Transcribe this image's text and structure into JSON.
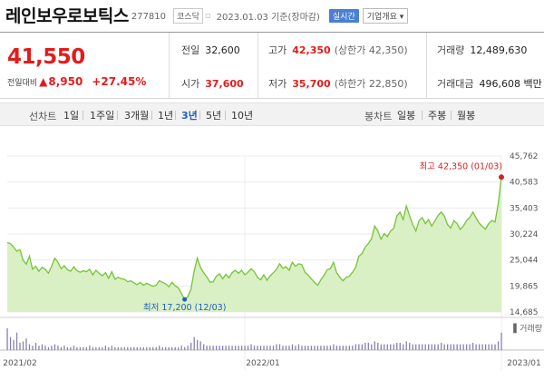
{
  "header": {
    "name": "레인보우로보틱스",
    "code": "277810",
    "market": "코스닥",
    "date_text": "2023.01.03  기준(장마감)",
    "realtime_label": "실시간",
    "company_label": "기업개요 ▾"
  },
  "price": {
    "current": "41,550",
    "change_label": "전일대비",
    "change": "8,950",
    "rate": "+27.45%"
  },
  "stats": {
    "prev_close": {
      "label": "전일",
      "value": "32,600"
    },
    "open": {
      "label": "시가",
      "value": "37,600"
    },
    "high": {
      "label": "고가",
      "value": "42,350",
      "extra": "(상한가 42,350)"
    },
    "low": {
      "label": "저가",
      "value": "35,700",
      "extra": "(하한가 22,850)"
    },
    "volume": {
      "label": "거래량",
      "value": "12,489,630"
    },
    "amount": {
      "label": "거래대금",
      "value": "496,608 백만"
    }
  },
  "toolbar": {
    "line_label": "선차트",
    "periods": [
      "1일",
      "1주일",
      "3개월",
      "1년",
      "3년",
      "5년",
      "10년"
    ],
    "active_period": "3년",
    "candle_label": "봉차트",
    "candles": [
      "일봉",
      "주봉",
      "월봉"
    ]
  },
  "colors": {
    "up": "#e41b1b",
    "accent": "#1f5fbf",
    "line": "#78c23a",
    "area": "#d9f0c4"
  },
  "chart_data": {
    "type": "area",
    "y_ticks": [
      "45,762",
      "40,583",
      "35,403",
      "30,224",
      "25,044",
      "19,865",
      "14,685"
    ],
    "ylim": [
      14685,
      45762
    ],
    "x_labels": [
      "2021/02",
      "2022/01",
      "2023/01"
    ],
    "high_label": "최고 42,350 (01/03)",
    "low_label": "최저 17,200 (12/03)",
    "volume_label": "▌거래량",
    "values": [
      28500,
      28300,
      27600,
      26800,
      27100,
      25000,
      24200,
      25800,
      23200,
      23800,
      22800,
      23600,
      23200,
      22400,
      23800,
      25400,
      24600,
      23300,
      23900,
      23100,
      22800,
      23700,
      22900,
      22600,
      22900,
      22700,
      23200,
      22100,
      23000,
      22400,
      21900,
      22500,
      21400,
      22700,
      21200,
      21600,
      21300,
      21200,
      20700,
      20900,
      20500,
      20100,
      20600,
      20000,
      20400,
      20100,
      19800,
      20000,
      20900,
      20600,
      20300,
      19700,
      20600,
      19900,
      19500,
      18400,
      17200,
      17700,
      19200,
      22800,
      25400,
      23600,
      22500,
      21700,
      20600,
      20700,
      21800,
      22300,
      21300,
      22200,
      21500,
      22500,
      23000,
      22400,
      23000,
      22100,
      22600,
      23300,
      22700,
      21600,
      21100,
      22100,
      21000,
      21900,
      22500,
      23200,
      24300,
      23400,
      23700,
      23000,
      24600,
      23800,
      24300,
      24100,
      22600,
      22000,
      21300,
      20600,
      20000,
      21100,
      22000,
      23100,
      23300,
      24600,
      22500,
      21600,
      20900,
      21600,
      21800,
      22600,
      23600,
      25800,
      26300,
      27600,
      28300,
      29300,
      31800,
      30800,
      29200,
      30300,
      29700,
      30800,
      31300,
      33800,
      34600,
      33100,
      35800,
      33900,
      32100,
      30800,
      32900,
      33500,
      32300,
      33100,
      31800,
      32800,
      33900,
      34600,
      33800,
      32100,
      31400,
      32900,
      32300,
      31100,
      31800,
      32900,
      33500,
      34600,
      33400,
      32400,
      31700,
      31200,
      32300,
      32900,
      32600,
      36200,
      41550
    ],
    "volume": [
      15,
      9,
      7,
      12,
      5,
      6,
      8,
      4,
      3,
      5,
      3,
      4,
      3,
      2,
      3,
      4,
      3,
      2,
      3,
      2,
      2,
      3,
      2,
      2,
      2,
      2,
      3,
      2,
      2,
      2,
      2,
      3,
      2,
      3,
      2,
      2,
      2,
      2,
      2,
      2,
      2,
      2,
      2,
      2,
      2,
      2,
      2,
      2,
      3,
      2,
      2,
      2,
      2,
      2,
      2,
      3,
      2,
      3,
      5,
      9,
      7,
      6,
      4,
      3,
      3,
      3,
      3,
      3,
      3,
      3,
      3,
      3,
      3,
      3,
      3,
      3,
      3,
      4,
      3,
      3,
      3,
      3,
      3,
      3,
      3,
      4,
      4,
      3,
      3,
      3,
      4,
      3,
      4,
      3,
      3,
      3,
      3,
      3,
      3,
      3,
      3,
      3,
      3,
      4,
      3,
      3,
      3,
      3,
      3,
      3,
      4,
      4,
      4,
      5,
      5,
      4,
      6,
      5,
      4,
      4,
      4,
      4,
      4,
      5,
      5,
      4,
      6,
      5,
      4,
      4,
      4,
      4,
      4,
      4,
      4,
      4,
      4,
      5,
      4,
      4,
      4,
      4,
      4,
      4,
      4,
      4,
      4,
      5,
      4,
      4,
      4,
      4,
      4,
      4,
      4,
      6,
      12
    ]
  }
}
